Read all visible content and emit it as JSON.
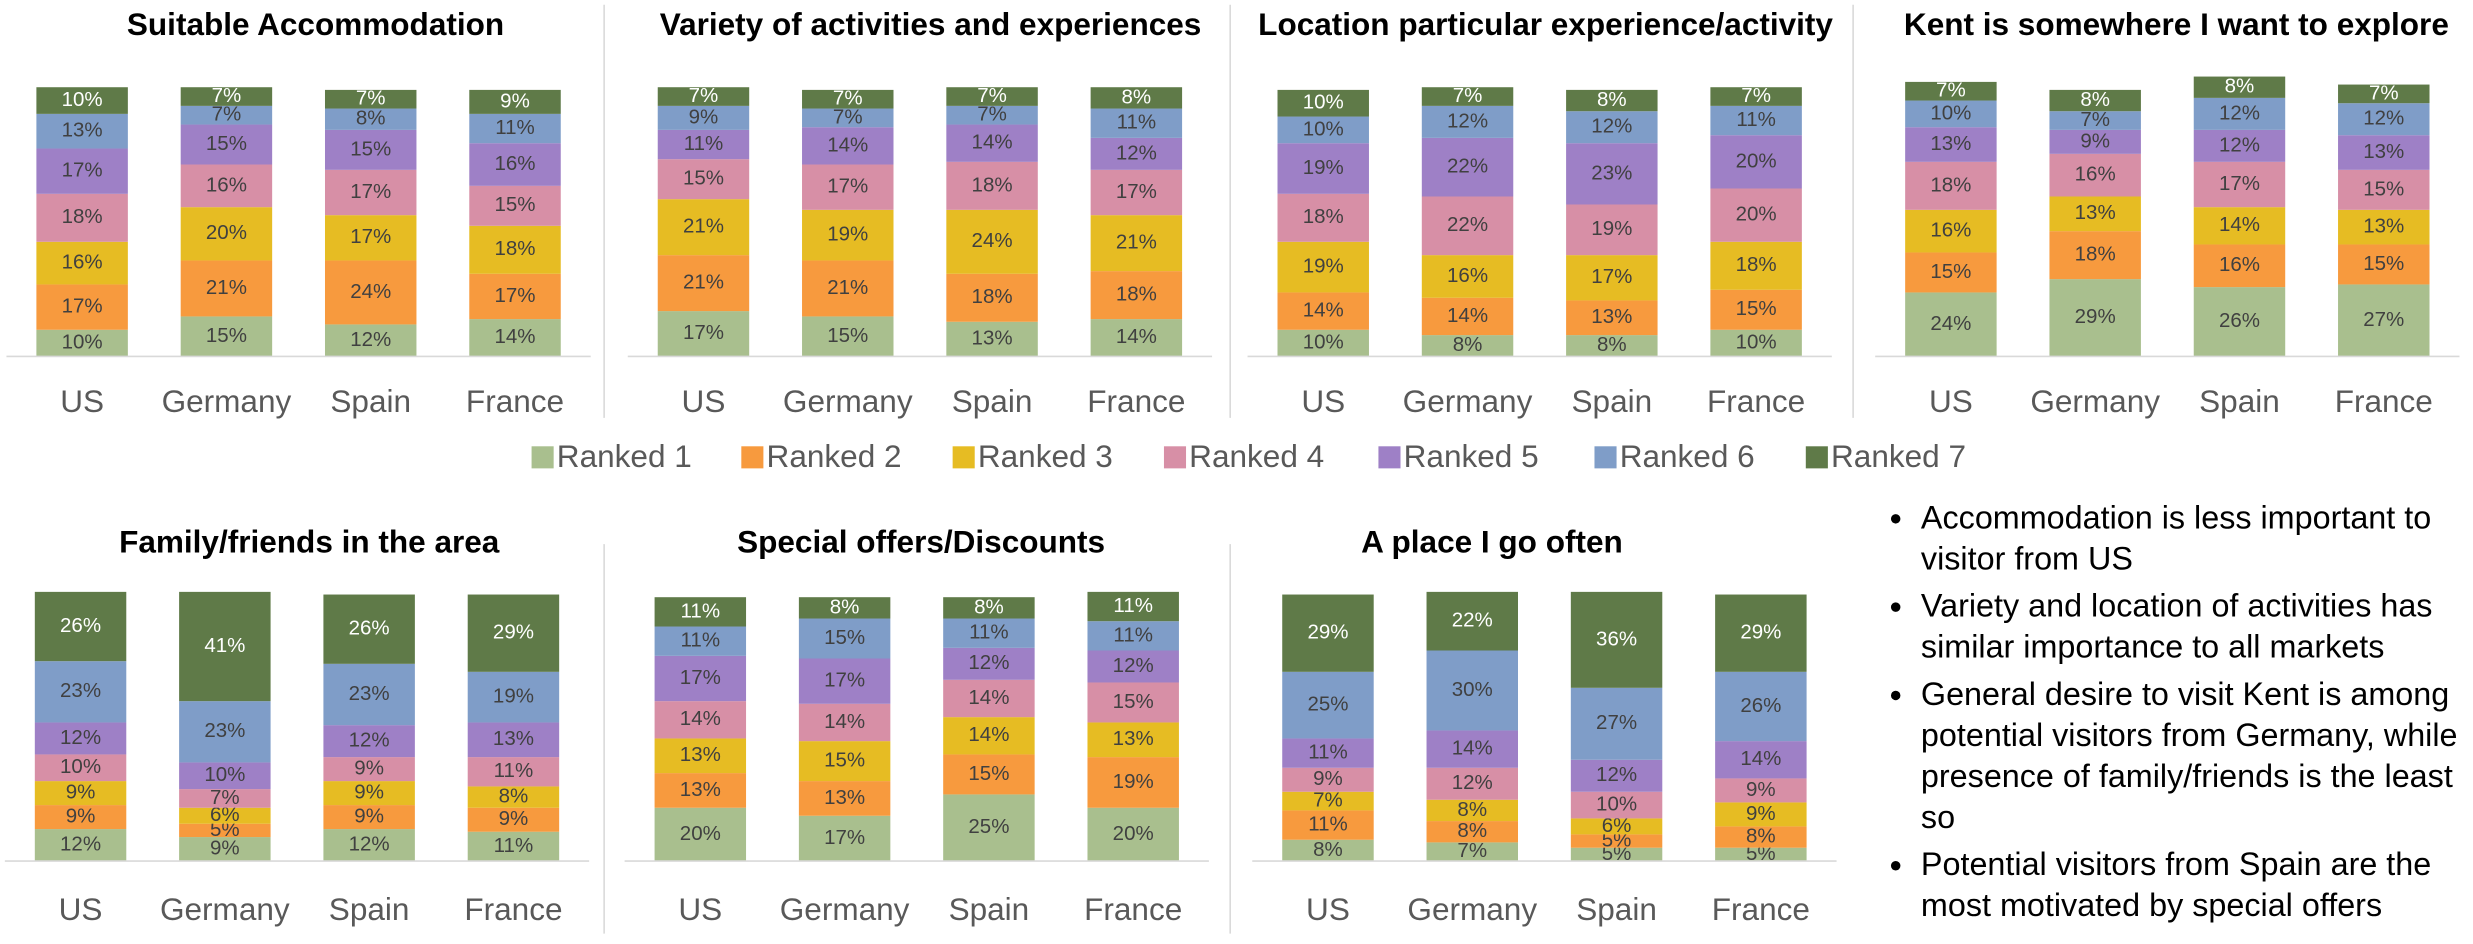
{
  "chart_data": [
    {
      "type": "bar",
      "stacked": true,
      "title": "Suitable Accommodation",
      "categories": [
        "US",
        "Germany",
        "Spain",
        "France"
      ],
      "series": [
        {
          "values": [
            10,
            15,
            12,
            14
          ],
          "value_labels": [
            "10%",
            "15%",
            "12%",
            "14%"
          ]
        },
        {
          "values": [
            17,
            21,
            24,
            17
          ],
          "value_labels": [
            "17%",
            "21%",
            "24%",
            "17%"
          ]
        },
        {
          "values": [
            16,
            20,
            17,
            18
          ],
          "value_labels": [
            "16%",
            "20%",
            "17%",
            "18%"
          ]
        },
        {
          "values": [
            18,
            16,
            17,
            15
          ],
          "value_labels": [
            "18%",
            "16%",
            "17%",
            "15%"
          ]
        },
        {
          "values": [
            17,
            15,
            15,
            16
          ],
          "value_labels": [
            "17%",
            "15%",
            "15%",
            "16%"
          ]
        },
        {
          "values": [
            13,
            7,
            8,
            11
          ],
          "value_labels": [
            "13%",
            "7%",
            "8%",
            "11%"
          ]
        },
        {
          "values": [
            10,
            7,
            7,
            9
          ],
          "value_labels": [
            "10%",
            "7%",
            "7%",
            "9%"
          ]
        }
      ]
    },
    {
      "type": "bar",
      "stacked": true,
      "title": "Variety of activities and experiences",
      "categories": [
        "US",
        "Germany",
        "Spain",
        "France"
      ],
      "series": [
        {
          "values": [
            17,
            15,
            13,
            14
          ],
          "value_labels": [
            "17%",
            "15%",
            "13%",
            "14%"
          ]
        },
        {
          "values": [
            21,
            21,
            18,
            18
          ],
          "value_labels": [
            "21%",
            "21%",
            "18%",
            "18%"
          ]
        },
        {
          "values": [
            21,
            19,
            24,
            21
          ],
          "value_labels": [
            "21%",
            "19%",
            "24%",
            "21%"
          ]
        },
        {
          "values": [
            15,
            17,
            18,
            17
          ],
          "value_labels": [
            "15%",
            "17%",
            "18%",
            "17%"
          ]
        },
        {
          "values": [
            11,
            14,
            14,
            12
          ],
          "value_labels": [
            "11%",
            "14%",
            "14%",
            "12%"
          ]
        },
        {
          "values": [
            9,
            7,
            7,
            11
          ],
          "value_labels": [
            "9%",
            "7%",
            "7%",
            "11%"
          ]
        },
        {
          "values": [
            7,
            7,
            7,
            8
          ],
          "value_labels": [
            "7%",
            "7%",
            "7%",
            "8%"
          ]
        }
      ]
    },
    {
      "type": "bar",
      "stacked": true,
      "title": "Location particular experience/activity",
      "categories": [
        "US",
        "Germany",
        "Spain",
        "France"
      ],
      "series": [
        {
          "values": [
            10,
            8,
            8,
            10
          ],
          "value_labels": [
            "10%",
            "8%",
            "8%",
            "10%"
          ]
        },
        {
          "values": [
            14,
            14,
            13,
            15
          ],
          "value_labels": [
            "14%",
            "14%",
            "13%",
            "15%"
          ]
        },
        {
          "values": [
            19,
            16,
            17,
            18
          ],
          "value_labels": [
            "19%",
            "16%",
            "17%",
            "18%"
          ]
        },
        {
          "values": [
            18,
            22,
            19,
            20
          ],
          "value_labels": [
            "18%",
            "22%",
            "19%",
            "20%"
          ]
        },
        {
          "values": [
            19,
            22,
            23,
            20
          ],
          "value_labels": [
            "19%",
            "22%",
            "23%",
            "20%"
          ]
        },
        {
          "values": [
            10,
            12,
            12,
            11
          ],
          "value_labels": [
            "10%",
            "12%",
            "12%",
            "11%"
          ]
        },
        {
          "values": [
            10,
            7,
            8,
            7
          ],
          "value_labels": [
            "10%",
            "7%",
            "8%",
            "7%"
          ]
        }
      ]
    },
    {
      "type": "bar",
      "stacked": true,
      "title": "Kent is somewhere I want to explore",
      "categories": [
        "US",
        "Germany",
        "Spain",
        "France"
      ],
      "series": [
        {
          "values": [
            24,
            29,
            26,
            27
          ],
          "value_labels": [
            "24%",
            "29%",
            "26%",
            "27%"
          ]
        },
        {
          "values": [
            15,
            18,
            16,
            15
          ],
          "value_labels": [
            "15%",
            "18%",
            "16%",
            "15%"
          ]
        },
        {
          "values": [
            16,
            13,
            14,
            13
          ],
          "value_labels": [
            "16%",
            "13%",
            "14%",
            "13%"
          ]
        },
        {
          "values": [
            18,
            16,
            17,
            15
          ],
          "value_labels": [
            "18%",
            "16%",
            "17%",
            "15%"
          ]
        },
        {
          "values": [
            13,
            9,
            12,
            13
          ],
          "value_labels": [
            "13%",
            "9%",
            "12%",
            "13%"
          ]
        },
        {
          "values": [
            10,
            7,
            12,
            12
          ],
          "value_labels": [
            "10%",
            "7%",
            "12%",
            "12%"
          ]
        },
        {
          "values": [
            7,
            8,
            8,
            7
          ],
          "value_labels": [
            "7%",
            "8%",
            "8%",
            "7%"
          ]
        }
      ]
    },
    {
      "type": "bar",
      "stacked": true,
      "title": "Family/friends in the area",
      "categories": [
        "US",
        "Germany",
        "Spain",
        "France"
      ],
      "series": [
        {
          "values": [
            12,
            9,
            12,
            11
          ],
          "value_labels": [
            "12%",
            "9%",
            "12%",
            "11%"
          ]
        },
        {
          "values": [
            9,
            5,
            9,
            9
          ],
          "value_labels": [
            "9%",
            "5%",
            "9%",
            "9%"
          ]
        },
        {
          "values": [
            9,
            6,
            9,
            8
          ],
          "value_labels": [
            "9%",
            "6%",
            "9%",
            "8%"
          ]
        },
        {
          "values": [
            10,
            7,
            9,
            11
          ],
          "value_labels": [
            "10%",
            "7%",
            "9%",
            "11%"
          ]
        },
        {
          "values": [
            12,
            10,
            12,
            13
          ],
          "value_labels": [
            "12%",
            "10%",
            "12%",
            "13%"
          ]
        },
        {
          "values": [
            23,
            23,
            23,
            19
          ],
          "value_labels": [
            "23%",
            "23%",
            "23%",
            "19%"
          ]
        },
        {
          "values": [
            26,
            41,
            26,
            29
          ],
          "value_labels": [
            "26%",
            "41%",
            "26%",
            "29%"
          ]
        }
      ]
    },
    {
      "type": "bar",
      "stacked": true,
      "title": "Special offers/Discounts",
      "categories": [
        "US",
        "Germany",
        "Spain",
        "France"
      ],
      "series": [
        {
          "values": [
            20,
            17,
            25,
            20
          ],
          "value_labels": [
            "20%",
            "17%",
            "25%",
            "20%"
          ]
        },
        {
          "values": [
            13,
            13,
            15,
            19
          ],
          "value_labels": [
            "13%",
            "13%",
            "15%",
            "19%"
          ]
        },
        {
          "values": [
            13,
            15,
            14,
            13
          ],
          "value_labels": [
            "13%",
            "15%",
            "14%",
            "13%"
          ]
        },
        {
          "values": [
            14,
            14,
            14,
            15
          ],
          "value_labels": [
            "14%",
            "14%",
            "14%",
            "15%"
          ]
        },
        {
          "values": [
            17,
            17,
            12,
            12
          ],
          "value_labels": [
            "17%",
            "17%",
            "12%",
            "12%"
          ]
        },
        {
          "values": [
            11,
            15,
            11,
            11
          ],
          "value_labels": [
            "11%",
            "15%",
            "11%",
            "11%"
          ]
        },
        {
          "values": [
            11,
            8,
            8,
            11
          ],
          "value_labels": [
            "11%",
            "8%",
            "8%",
            "11%"
          ]
        }
      ]
    },
    {
      "type": "bar",
      "stacked": true,
      "title": "A place I go often",
      "categories": [
        "US",
        "Germany",
        "Spain",
        "France"
      ],
      "series": [
        {
          "values": [
            8,
            7,
            5,
            5
          ],
          "value_labels": [
            "8%",
            "7%",
            "5%",
            "5%"
          ]
        },
        {
          "values": [
            11,
            8,
            5,
            8
          ],
          "value_labels": [
            "11%",
            "8%",
            "5%",
            "8%"
          ]
        },
        {
          "values": [
            7,
            8,
            6,
            9
          ],
          "value_labels": [
            "7%",
            "8%",
            "6%",
            "9%"
          ]
        },
        {
          "values": [
            9,
            12,
            10,
            9
          ],
          "value_labels": [
            "9%",
            "12%",
            "10%",
            "9%"
          ]
        },
        {
          "values": [
            11,
            14,
            12,
            14
          ],
          "value_labels": [
            "11%",
            "14%",
            "12%",
            "14%"
          ]
        },
        {
          "values": [
            25,
            30,
            27,
            26
          ],
          "value_labels": [
            "25%",
            "30%",
            "27%",
            "26%"
          ]
        },
        {
          "values": [
            29,
            22,
            36,
            29
          ],
          "value_labels": [
            "29%",
            "22%",
            "36%",
            "29%"
          ]
        }
      ]
    }
  ],
  "legend": [
    {
      "name": "Ranked 1",
      "color": "#a9bf8e"
    },
    {
      "name": "Ranked 2",
      "color": "#f79a3e"
    },
    {
      "name": "Ranked 3",
      "color": "#e6bc23"
    },
    {
      "name": "Ranked 4",
      "color": "#d78fa6"
    },
    {
      "name": "Ranked 5",
      "color": "#9e80c6"
    },
    {
      "name": "Ranked 6",
      "color": "#7f9dc8"
    },
    {
      "name": "Ranked 7",
      "color": "#5f7a48"
    }
  ],
  "notes": [
    "Accommodation is less important to visitor from US",
    "Variety and location of activities has similar importance to all markets",
    "General desire to visit Kent is among potential visitors from Germany, while presence of family/friends is the least so",
    "Potential visitors from Spain are the most motivated by special offers"
  ]
}
